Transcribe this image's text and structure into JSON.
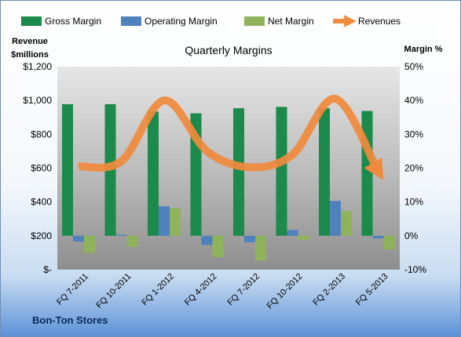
{
  "chart_data": {
    "type": "bar",
    "title": "Quarterly Margins",
    "company": "Bon-Ton Stores",
    "categories": [
      "FQ 7-2011",
      "FQ 10-2011",
      "FQ 1-2012",
      "FQ 4-2012",
      "FQ 7-2012",
      "FQ 10-2012",
      "FQ 2-2013",
      "FQ 5-2013"
    ],
    "left_axis": {
      "label_line1": "Revenue",
      "label_line2": "$millions",
      "range": [
        0,
        1200
      ],
      "ticks": [
        "$-",
        "$200",
        "$400",
        "$600",
        "$800",
        "$1,000",
        "$1,200"
      ]
    },
    "right_axis": {
      "label": "Margin %",
      "range": [
        -10,
        50
      ],
      "ticks": [
        "-10%",
        "0%",
        "10%",
        "20%",
        "30%",
        "40%",
        "50%"
      ]
    },
    "series": [
      {
        "name": "Gross Margin",
        "type": "bar",
        "axis": "right",
        "color": "#1b8a4a",
        "values": [
          38.9,
          38.9,
          36.7,
          36.2,
          37.7,
          38.1,
          37.7,
          36.9
        ]
      },
      {
        "name": "Operating Margin",
        "type": "bar",
        "axis": "right",
        "color": "#4f81bd",
        "values": [
          -1.7,
          0.3,
          8.7,
          -2.7,
          -1.9,
          1.7,
          10.3,
          -0.8
        ]
      },
      {
        "name": "Net Margin",
        "type": "bar",
        "axis": "right",
        "color": "#8fb35b",
        "values": [
          -5.0,
          -3.3,
          8.2,
          -6.3,
          -7.3,
          -1.2,
          7.3,
          -4.0
        ]
      },
      {
        "name": "Revenues",
        "type": "line",
        "axis": "left",
        "color": "#f08a3c",
        "values": [
          610,
          640,
          1000,
          700,
          605,
          680,
          1010,
          580
        ]
      }
    ],
    "legend_position": "top",
    "grid": false
  }
}
